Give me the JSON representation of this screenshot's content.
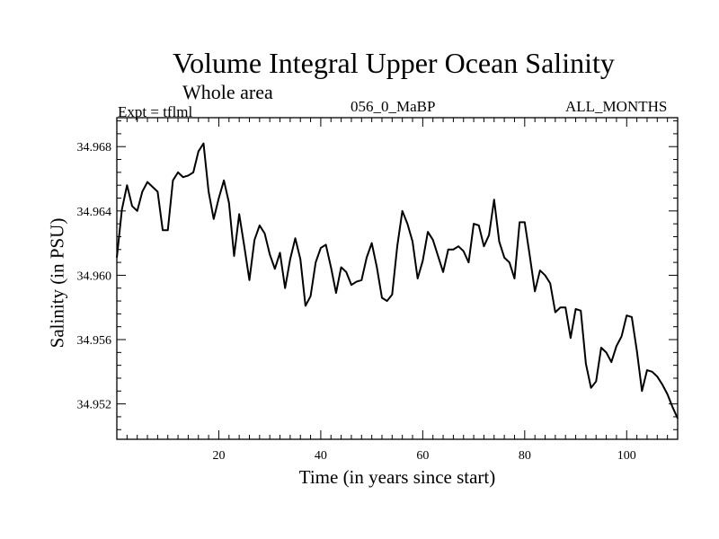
{
  "chart_data": {
    "type": "line",
    "title": "Volume Integral Upper Ocean Salinity",
    "subtitle": "Whole area",
    "left_label": "Expt = tflml",
    "center_label": "056_0_MaBP",
    "right_label": "ALL_MONTHS",
    "xlabel": "Time (in years since start)",
    "ylabel": "Salinity (in PSU)",
    "xlim": [
      0,
      110
    ],
    "ylim": [
      34.9498,
      34.9698
    ],
    "xticks": [
      20,
      40,
      60,
      80,
      100
    ],
    "yticks": [
      34.952,
      34.956,
      34.96,
      34.964,
      34.968
    ],
    "ytick_labels": [
      "34.952",
      "34.956",
      "34.960",
      "34.964",
      "34.968"
    ],
    "grid": false,
    "series": [
      {
        "name": "Salinity",
        "color": "#000000",
        "x": [
          0,
          1,
          2,
          3,
          4,
          5,
          6,
          7,
          8,
          9,
          10,
          11,
          12,
          13,
          14,
          15,
          16,
          17,
          18,
          19,
          20,
          21,
          22,
          23,
          24,
          25,
          26,
          27,
          28,
          29,
          30,
          31,
          32,
          33,
          34,
          35,
          36,
          37,
          38,
          39,
          40,
          41,
          42,
          43,
          44,
          45,
          46,
          47,
          48,
          49,
          50,
          51,
          52,
          53,
          54,
          55,
          56,
          57,
          58,
          59,
          60,
          61,
          62,
          63,
          64,
          65,
          66,
          67,
          68,
          69,
          70,
          71,
          72,
          73,
          74,
          75,
          76,
          77,
          78,
          79,
          80,
          81,
          82,
          83,
          84,
          85,
          86,
          87,
          88,
          89,
          90,
          91,
          92,
          93,
          94,
          95,
          96,
          97,
          98,
          99,
          100,
          101,
          102,
          103,
          104,
          105,
          106,
          107,
          108,
          109,
          110
        ],
        "y": [
          34.9611,
          34.9641,
          34.9656,
          34.9643,
          34.964,
          34.9652,
          34.9658,
          34.9655,
          34.9652,
          34.9628,
          34.9628,
          34.9659,
          34.9664,
          34.9661,
          34.9662,
          34.9664,
          34.9677,
          34.9682,
          34.9652,
          34.9635,
          34.9648,
          34.9659,
          34.9645,
          34.9612,
          34.9638,
          34.9618,
          34.9597,
          34.9622,
          34.9631,
          34.9626,
          34.9613,
          34.9604,
          34.9614,
          34.9592,
          34.961,
          34.9623,
          34.961,
          34.9581,
          34.9587,
          34.9608,
          34.9617,
          34.9619,
          34.9605,
          34.9589,
          34.9605,
          34.9602,
          34.9594,
          34.9596,
          34.9597,
          34.9611,
          34.962,
          34.9605,
          34.9586,
          34.9584,
          34.9588,
          34.9618,
          34.964,
          34.9632,
          34.9621,
          34.9598,
          34.9609,
          34.9627,
          34.9622,
          34.9612,
          34.9602,
          34.9616,
          34.9616,
          34.9618,
          34.9615,
          34.9608,
          34.9632,
          34.9631,
          34.9618,
          34.9625,
          34.9647,
          34.9621,
          34.9611,
          34.9608,
          34.9598,
          34.9633,
          34.9633,
          34.9612,
          34.959,
          34.9603,
          34.96,
          34.9595,
          34.9577,
          34.958,
          34.958,
          34.9561,
          34.9579,
          34.9578,
          34.9545,
          34.953,
          34.9534,
          34.9555,
          34.9552,
          34.9546,
          34.9556,
          34.9562,
          34.9575,
          34.9574,
          34.9553,
          34.9528,
          34.9541,
          34.954,
          34.9537,
          34.9532,
          34.9526,
          34.9518,
          34.9511
        ]
      }
    ]
  }
}
